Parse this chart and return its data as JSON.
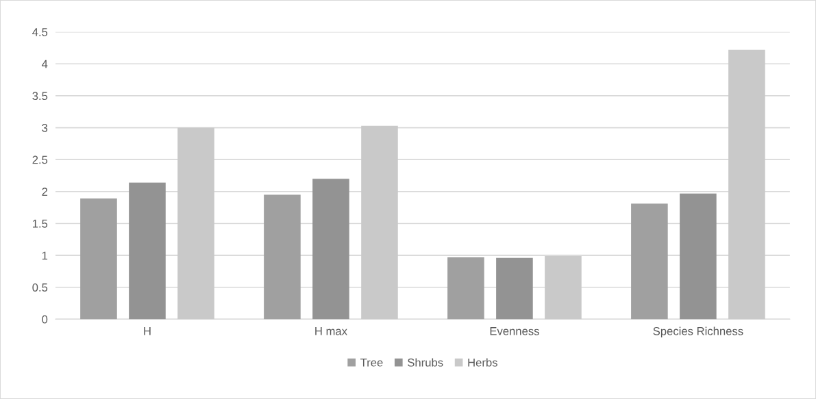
{
  "chart_data": {
    "type": "bar",
    "categories": [
      "H",
      "H max",
      "Evenness",
      "Species Richness"
    ],
    "series": [
      {
        "name": "Tree",
        "color": "#a0a0a0",
        "values": [
          1.89,
          1.95,
          0.97,
          1.81
        ]
      },
      {
        "name": "Shrubs",
        "color": "#939393",
        "values": [
          2.14,
          2.2,
          0.96,
          1.97
        ]
      },
      {
        "name": "Herbs",
        "color": "#c9c9c9",
        "values": [
          3.0,
          3.03,
          0.99,
          4.22
        ]
      }
    ],
    "ylim": [
      0,
      4.5
    ],
    "yticks": [
      0,
      0.5,
      1,
      1.5,
      2,
      2.5,
      3,
      3.5,
      4,
      4.5
    ],
    "grid": "y",
    "legend": "bottom"
  }
}
